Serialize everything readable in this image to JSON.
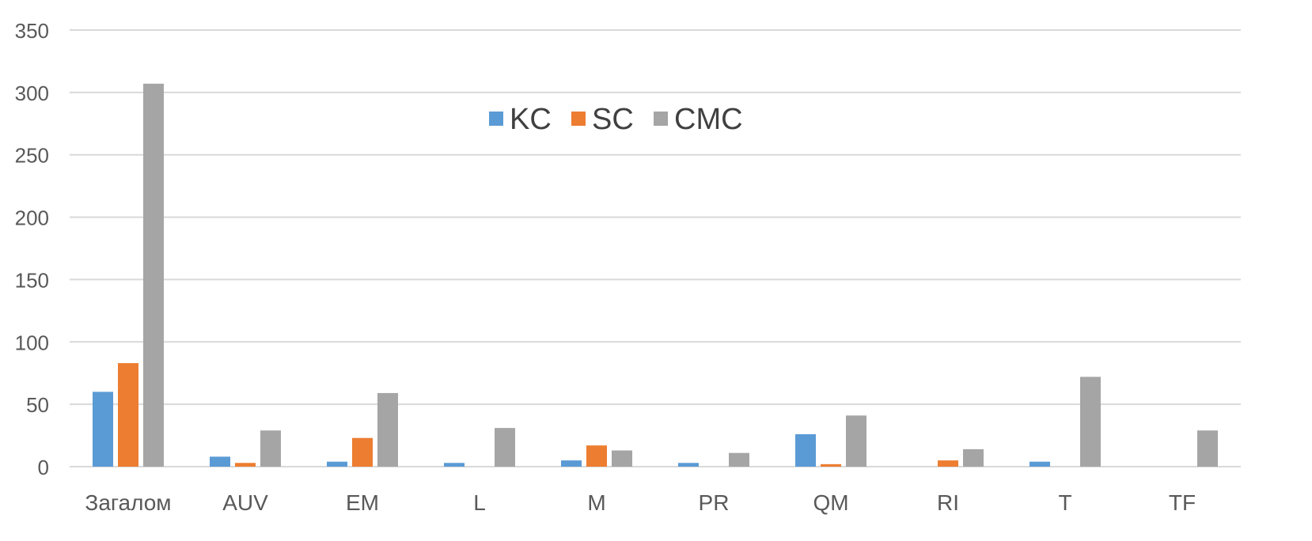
{
  "chart_data": {
    "type": "bar",
    "categories": [
      "Загалом",
      "AUV",
      "EM",
      "L",
      "M",
      "PR",
      "QM",
      "RI",
      "T",
      "TF"
    ],
    "series": [
      {
        "name": "KC",
        "color": "#5b9bd5",
        "values": [
          60,
          8,
          4,
          3,
          5,
          3,
          26,
          0,
          4,
          0
        ]
      },
      {
        "name": "SC",
        "color": "#ed7d31",
        "values": [
          83,
          3,
          23,
          0,
          17,
          0,
          2,
          5,
          0,
          0
        ]
      },
      {
        "name": "CMC",
        "color": "#a5a5a5",
        "values": [
          307,
          29,
          59,
          31,
          13,
          11,
          41,
          14,
          72,
          29
        ]
      }
    ],
    "title": "",
    "xlabel": "",
    "ylabel": "",
    "ylim": [
      0,
      350
    ],
    "yticks": [
      "0",
      "50",
      "100",
      "150",
      "200",
      "250",
      "300",
      "350"
    ],
    "grid": true,
    "legend": "top-center"
  },
  "colors": {
    "grid": "#d9d9d9",
    "tick_text": "#595959",
    "legend_text": "#404040"
  }
}
